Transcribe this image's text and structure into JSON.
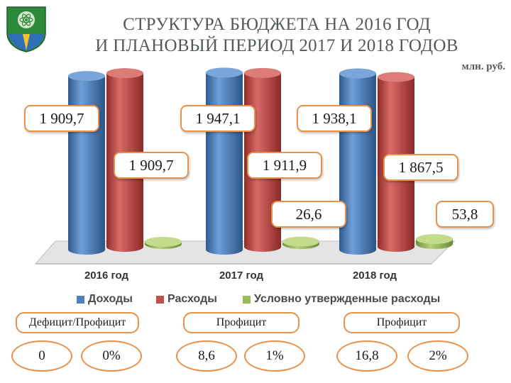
{
  "title_line1": "СТРУКТУРА БЮДЖЕТА НА 2016 ГОД",
  "title_line2": "И ПЛАНОВЫЙ ПЕРИОД 2017 И 2018 ГОДОВ",
  "units": "млн. руб.",
  "colors": {
    "income": "#4f81bd",
    "expense": "#c0504d",
    "conditional": "#9bbb59",
    "label_border": "#e8914a"
  },
  "chart_data": {
    "type": "bar",
    "categories": [
      "2016 год",
      "2017 год",
      "2018 год"
    ],
    "series": [
      {
        "name": "Доходы",
        "values": [
          1909.7,
          1947.1,
          1938.1
        ],
        "labels": [
          "1 909,7",
          "1 947,1",
          "1 938,1"
        ]
      },
      {
        "name": "Расходы",
        "values": [
          1909.7,
          1911.9,
          1867.5
        ],
        "labels": [
          "1 909,7",
          "1 911,9",
          "1 867,5"
        ]
      },
      {
        "name": "Условно утвержденные расходы",
        "values": [
          0,
          26.6,
          53.8
        ],
        "labels": [
          "",
          "26,6",
          "53,8"
        ]
      }
    ]
  },
  "balance": [
    {
      "status": "Дефицит/Профицит",
      "amount": "0",
      "percent": "0%"
    },
    {
      "status": "Профицит",
      "amount": "8,6",
      "percent": "1%"
    },
    {
      "status": "Профицит",
      "amount": "16,8",
      "percent": "2%"
    }
  ]
}
